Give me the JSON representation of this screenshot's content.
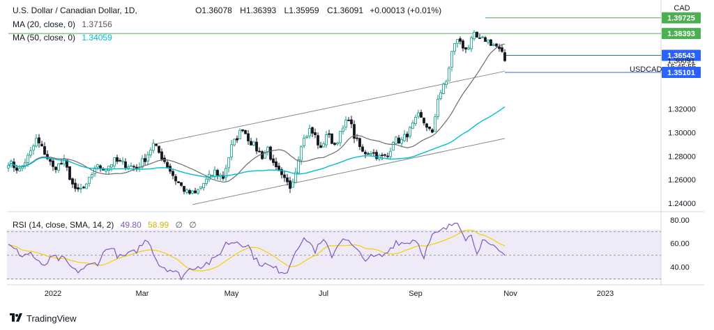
{
  "legend": {
    "symbol": "U.S. Dollar / Canadian Dollar, 1D,",
    "ohlc": {
      "o": "O1.36078",
      "h": "H1.36393",
      "l": "L1.35959",
      "c": "C1.36091",
      "chg": "+0.00013 (+0.01%)"
    },
    "ma20_label": "MA (20, close, 0)",
    "ma20_value": "1.37156",
    "ma50_label": "MA (50, close, 0)",
    "ma50_value": "1.34059",
    "rsi_label": "RSI (14, close, SMA, 14, 2)",
    "rsi_value": "49.80",
    "rsi_sma_value": "58.99",
    "rsi_na1": "∅",
    "rsi_na2": "∅"
  },
  "footer": {
    "brand": "TradingView"
  },
  "colors": {
    "up": "#089981",
    "down": "#131722",
    "ma20": "#6b6b6b",
    "ma50": "#00bcd4",
    "rsi": "#7e57c2",
    "rsi_sma": "#f5d000",
    "bg": "#ffffff",
    "grid": "#e0e3eb",
    "green": "#4caf50",
    "blue": "#2962ff"
  },
  "chart_data": {
    "type": "candlestick",
    "title": "U.S. Dollar / Canadian Dollar, 1D",
    "ticker": "USDCAD",
    "currency": "CAD",
    "x_ticks": [
      "2022",
      "Mar",
      "May",
      "Jul",
      "Sep",
      "Nov",
      "2023"
    ],
    "y_ticks": [
      "1.24000",
      "1.26000",
      "1.28000",
      "1.30000",
      "1.32000"
    ],
    "ylim": [
      1.233,
      1.41
    ],
    "price_labels": [
      {
        "text": "1.39725",
        "value": 1.39725,
        "style": "green"
      },
      {
        "text": "1.38393",
        "value": 1.38393,
        "style": "green"
      },
      {
        "text": "1.36543",
        "value": 1.36543,
        "style": "blue"
      },
      {
        "text": "1.36091",
        "value": 1.36091,
        "style": "plain"
      },
      {
        "text": "15:45:55",
        "value": 1.356,
        "style": "plain"
      },
      {
        "text": "1.35101",
        "value": 1.35101,
        "style": "blue"
      }
    ],
    "horizontal_lines": [
      {
        "value": 1.39725,
        "from_index": 171,
        "color": "green"
      },
      {
        "value": 1.38393,
        "from_index": 0,
        "color": "green"
      },
      {
        "value": 1.36543,
        "from_index": 178,
        "color": "blue"
      },
      {
        "value": 1.35101,
        "from_index": 178,
        "color": "blue"
      }
    ],
    "channel": {
      "upper": [
        [
          52,
          1.29
        ],
        [
          178,
          1.352
        ]
      ],
      "lower": [
        [
          66,
          1.239
        ],
        [
          178,
          1.295
        ]
      ]
    },
    "anchors": [
      [
        0,
        1.275
      ],
      [
        4,
        1.268
      ],
      [
        8,
        1.283
      ],
      [
        10,
        1.294
      ],
      [
        13,
        1.283
      ],
      [
        16,
        1.27
      ],
      [
        20,
        1.275
      ],
      [
        24,
        1.25
      ],
      [
        28,
        1.254
      ],
      [
        31,
        1.271
      ],
      [
        35,
        1.27
      ],
      [
        38,
        1.276
      ],
      [
        42,
        1.273
      ],
      [
        46,
        1.27
      ],
      [
        49,
        1.278
      ],
      [
        52,
        1.29
      ],
      [
        56,
        1.276
      ],
      [
        60,
        1.26
      ],
      [
        64,
        1.249
      ],
      [
        67,
        1.248
      ],
      [
        70,
        1.257
      ],
      [
        74,
        1.267
      ],
      [
        77,
        1.262
      ],
      [
        80,
        1.288
      ],
      [
        84,
        1.304
      ],
      [
        86,
        1.295
      ],
      [
        89,
        1.286
      ],
      [
        91,
        1.28
      ],
      [
        93,
        1.287
      ],
      [
        95,
        1.272
      ],
      [
        98,
        1.262
      ],
      [
        101,
        1.254
      ],
      [
        103,
        1.268
      ],
      [
        105,
        1.291
      ],
      [
        108,
        1.302
      ],
      [
        110,
        1.297
      ],
      [
        112,
        1.285
      ],
      [
        114,
        1.299
      ],
      [
        117,
        1.29
      ],
      [
        120,
        1.303
      ],
      [
        122,
        1.313
      ],
      [
        124,
        1.297
      ],
      [
        127,
        1.283
      ],
      [
        130,
        1.284
      ],
      [
        133,
        1.279
      ],
      [
        136,
        1.28
      ],
      [
        138,
        1.294
      ],
      [
        141,
        1.293
      ],
      [
        144,
        1.302
      ],
      [
        147,
        1.314
      ],
      [
        150,
        1.306
      ],
      [
        152,
        1.298
      ],
      [
        154,
        1.33
      ],
      [
        157,
        1.343
      ],
      [
        159,
        1.368
      ],
      [
        161,
        1.38
      ],
      [
        163,
        1.372
      ],
      [
        165,
        1.373
      ],
      [
        167,
        1.382
      ],
      [
        169,
        1.378
      ],
      [
        171,
        1.379
      ],
      [
        173,
        1.376
      ],
      [
        175,
        1.373
      ],
      [
        177,
        1.366
      ],
      [
        178,
        1.3609
      ]
    ],
    "ma20": "20-period moving average of close",
    "ma50": "50-period moving average of close",
    "rsi": {
      "ylim": [
        25,
        87
      ],
      "y_ticks": [
        "80.00",
        "60.00",
        "40.00"
      ],
      "band": [
        30,
        70
      ],
      "midline": 50,
      "anchors": [
        [
          0,
          58
        ],
        [
          5,
          50
        ],
        [
          8,
          52
        ],
        [
          12,
          40
        ],
        [
          16,
          48
        ],
        [
          20,
          46
        ],
        [
          24,
          36
        ],
        [
          28,
          40
        ],
        [
          32,
          44
        ],
        [
          36,
          58
        ],
        [
          40,
          48
        ],
        [
          45,
          52
        ],
        [
          50,
          64
        ],
        [
          54,
          42
        ],
        [
          58,
          38
        ],
        [
          62,
          32
        ],
        [
          66,
          40
        ],
        [
          70,
          42
        ],
        [
          74,
          46
        ],
        [
          78,
          60
        ],
        [
          82,
          62
        ],
        [
          86,
          58
        ],
        [
          89,
          45
        ],
        [
          92,
          42
        ],
        [
          96,
          38
        ],
        [
          100,
          36
        ],
        [
          103,
          56
        ],
        [
          107,
          64
        ],
        [
          110,
          54
        ],
        [
          113,
          62
        ],
        [
          116,
          50
        ],
        [
          120,
          66
        ],
        [
          124,
          56
        ],
        [
          127,
          48
        ],
        [
          131,
          48
        ],
        [
          135,
          50
        ],
        [
          139,
          62
        ],
        [
          142,
          60
        ],
        [
          146,
          64
        ],
        [
          149,
          50
        ],
        [
          152,
          66
        ],
        [
          155,
          70
        ],
        [
          158,
          74
        ],
        [
          161,
          80
        ],
        [
          164,
          65
        ],
        [
          166,
          66
        ],
        [
          168,
          54
        ],
        [
          170,
          62
        ],
        [
          172,
          58
        ],
        [
          175,
          55
        ],
        [
          178,
          50
        ]
      ]
    }
  }
}
